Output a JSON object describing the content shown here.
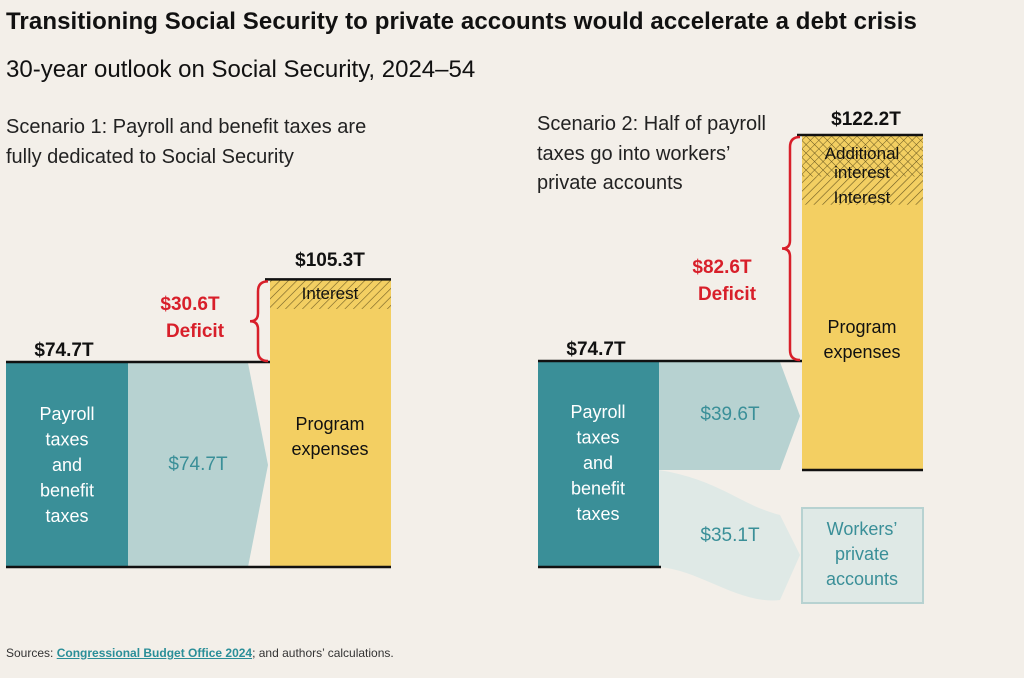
{
  "title": "Transitioning Social Security to private accounts would accelerate a debt crisis",
  "subtitle": "30-year outlook on Social Security, 2024–54",
  "colors": {
    "payroll": "#3a8f98",
    "flow": "#b7d2d1",
    "flow_light": "#dfe9e6",
    "program": "#f3cf62",
    "deficit": "#d81f2a",
    "background": "#f3efe9",
    "outline": "#b7d2d1"
  },
  "chart_data": [
    {
      "type": "bar",
      "label": "Scenario 1: Payroll and benefit taxes are fully dedicated to Social Security",
      "revenue": {
        "label": "Payroll taxes and benefit taxes",
        "value": 74.7,
        "value_label": "$74.7T"
      },
      "flows": [
        {
          "to": "Program expenses",
          "value": 74.7,
          "value_label": "$74.7T"
        }
      ],
      "outlays": [
        {
          "label": "Program expenses",
          "value": 94.5
        },
        {
          "label": "Interest",
          "value": 10.8
        }
      ],
      "total_outlays": {
        "value": 105.3,
        "value_label": "$105.3T"
      },
      "deficit": {
        "value": 30.6,
        "value_label": "$30.6T",
        "label": "Deficit"
      }
    },
    {
      "type": "bar",
      "label": "Scenario 2: Half of payroll taxes go into workers' private accounts",
      "revenue": {
        "label": "Payroll taxes and benefit taxes",
        "value": 74.7,
        "value_label": "$74.7T"
      },
      "flows": [
        {
          "to": "Program expenses",
          "value": 39.6,
          "value_label": "$39.6T"
        },
        {
          "to": "Workers' private accounts",
          "value": 35.1,
          "value_label": "$35.1T"
        }
      ],
      "outlays": [
        {
          "label": "Program expenses",
          "value": 94.5
        },
        {
          "label": "Interest",
          "value": 10.8
        },
        {
          "label": "Additional interest",
          "value": 16.9
        }
      ],
      "total_outlays": {
        "value": 122.2,
        "value_label": "$122.2T"
      },
      "deficit": {
        "value": 82.6,
        "value_label": "$82.6T",
        "label": "Deficit"
      },
      "private_accounts_label": "Workers' private accounts"
    }
  ],
  "labels": {
    "s1_revenue_lines": [
      "Payroll",
      "taxes",
      "and",
      "benefit",
      "taxes"
    ],
    "s2_revenue_lines": [
      "Payroll",
      "taxes",
      "and",
      "benefit",
      "taxes"
    ],
    "program_lines": [
      "Program",
      "expenses"
    ],
    "interest": "Interest",
    "additional_interest_lines": [
      "Additional",
      "interest"
    ],
    "private_lines": [
      "Workers’",
      "private",
      "accounts"
    ],
    "s1_label": "Scenario 1: Payroll and benefit taxes are fully dedicated to Social Security",
    "s2_label": "Scenario 2: Half of payroll taxes go into workers’ private accounts"
  },
  "source": {
    "prefix": "Sources: ",
    "link": "Congressional Budget Office 2024",
    "suffix": "; and authors’ calculations."
  }
}
